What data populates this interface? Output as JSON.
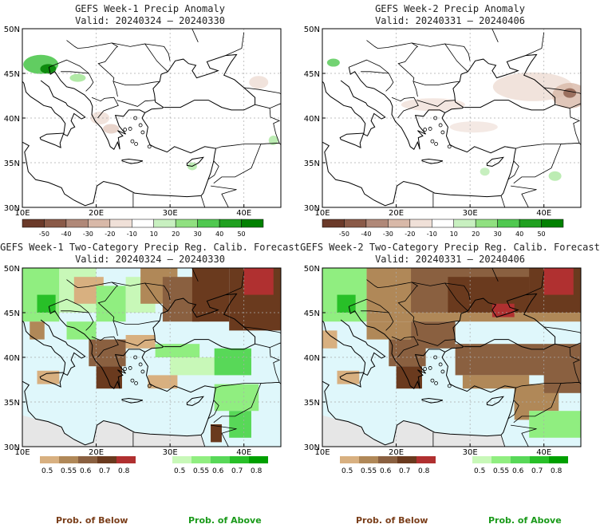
{
  "panels": {
    "p1": {
      "title": "GEFS Week-1 Precip Anomaly",
      "valid": "Valid: 20240324 – 20240330"
    },
    "p2": {
      "title": "GEFS Week-2 Precip Anomaly",
      "valid": "Valid: 20240331 – 20240406"
    },
    "p3": {
      "title": "GEFS Week-1 Two-Category Precip Reg. Calib. Forecast",
      "valid": "Valid: 20240324 – 20240330"
    },
    "p4": {
      "title": "GEFS Week-2 Two-Category Precip Reg. Calib. Forecast",
      "valid": "Valid: 20240331 – 20240406"
    }
  },
  "axes": {
    "lat_labels": [
      "50N",
      "45N",
      "40N",
      "35N",
      "30N"
    ],
    "lon_labels": [
      "10E",
      "20E",
      "30E",
      "40E"
    ]
  },
  "anomaly_legend": {
    "labels": [
      "-50",
      "-40",
      "-30",
      "-20",
      "-10",
      "10",
      "20",
      "30",
      "40",
      "50"
    ],
    "colors": [
      "#6b3a2a",
      "#8a5a48",
      "#b08878",
      "#d8b8a8",
      "#f0e0d8",
      "#ffffff",
      "#c8f0c0",
      "#90e080",
      "#50c850",
      "#20a020",
      "#008000"
    ]
  },
  "prob_legend": {
    "below_labels": [
      "0.5",
      "0.55",
      "0.6",
      "0.7",
      "0.8"
    ],
    "above_labels": [
      "0.5",
      "0.55",
      "0.6",
      "0.7",
      "0.8"
    ],
    "below_colors": [
      "#d8b080",
      "#b08858",
      "#8a6040",
      "#6a3a1e",
      "#b03030"
    ],
    "above_colors": [
      "#c8f8b8",
      "#90ee80",
      "#58d858",
      "#28c028",
      "#00a000"
    ]
  },
  "captions": {
    "below_1": "Prob. of Below",
    "above_1": "Prob. of Above",
    "below_2": "Prob. of Below",
    "above_2": "Prob. of Above"
  },
  "colors": {
    "sea": "#dff7fb",
    "land_gray": "#e6e6e6",
    "coast": "#000000",
    "grid": "#aaaaaa"
  }
}
